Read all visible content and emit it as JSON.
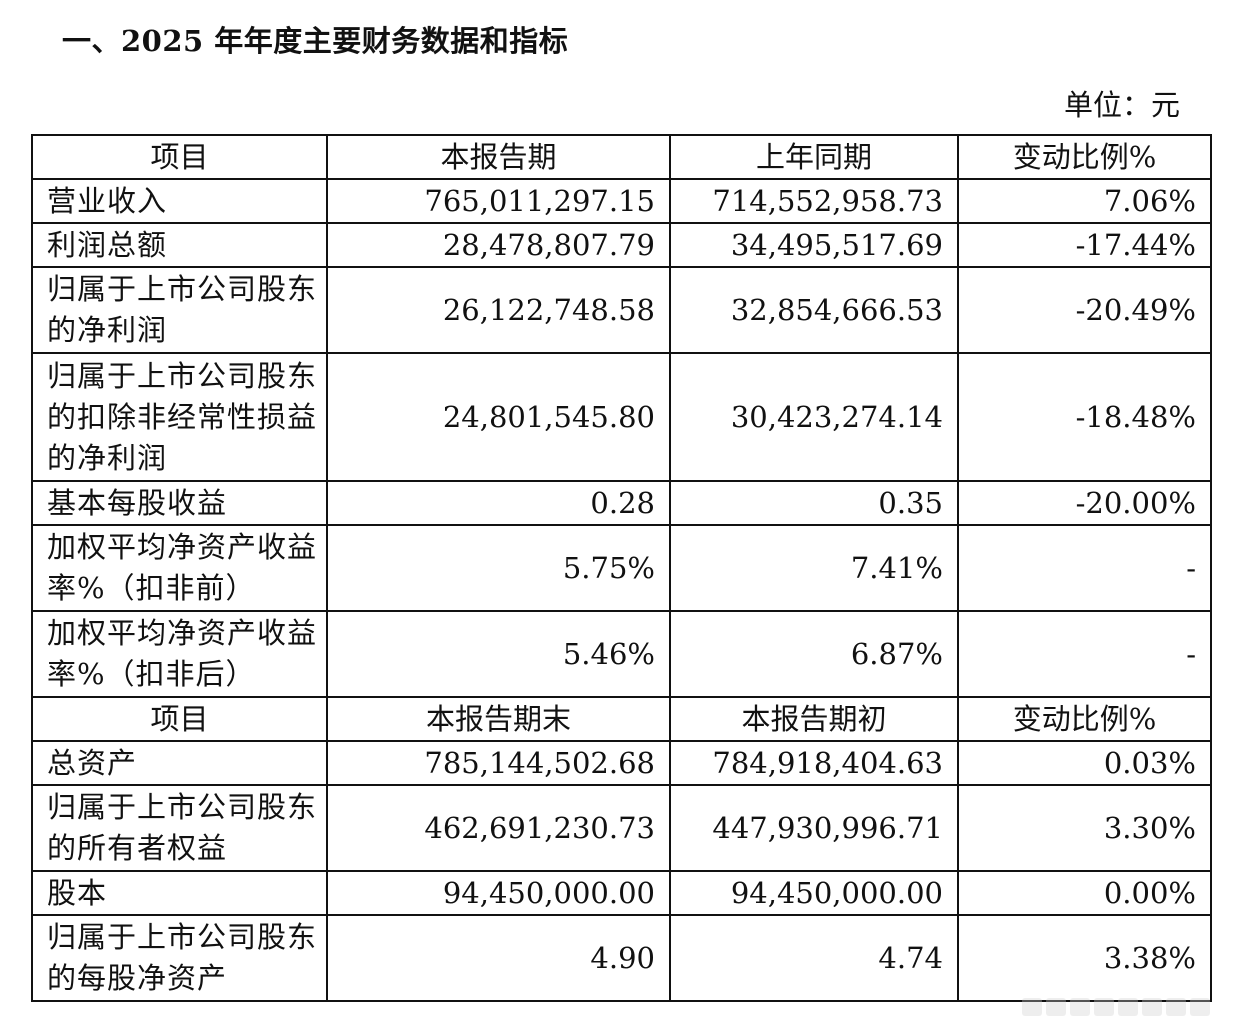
{
  "document": {
    "title": "一、2025 年年度主要财务数据和指标",
    "unit": "单位：元"
  },
  "table": {
    "header1": {
      "col1": "项目",
      "col2": "本报告期",
      "col3": "上年同期",
      "col4": "变动比例%"
    },
    "section1": [
      {
        "label": "营业收入",
        "current": "765,011,297.15",
        "prior": "714,552,958.73",
        "change": "7.06%"
      },
      {
        "label": "利润总额",
        "current": "28,478,807.79",
        "prior": "34,495,517.69",
        "change": "-17.44%"
      },
      {
        "label": "归属于上市公司股东的净利润",
        "current": "26,122,748.58",
        "prior": "32,854,666.53",
        "change": "-20.49%"
      },
      {
        "label": "归属于上市公司股东的扣除非经常性损益的净利润",
        "current": "24,801,545.80",
        "prior": "30,423,274.14",
        "change": "-18.48%"
      },
      {
        "label": "基本每股收益",
        "current": "0.28",
        "prior": "0.35",
        "change": "-20.00%"
      },
      {
        "label": "加权平均净资产收益率%（扣非前）",
        "current": "5.75%",
        "prior": "7.41%",
        "change": "-"
      },
      {
        "label": "加权平均净资产收益率%（扣非后）",
        "current": "5.46%",
        "prior": "6.87%",
        "change": "-"
      }
    ],
    "header2": {
      "col1": "项目",
      "col2": "本报告期末",
      "col3": "本报告期初",
      "col4": "变动比例%"
    },
    "section2": [
      {
        "label": "总资产",
        "current": "785,144,502.68",
        "prior": "784,918,404.63",
        "change": "0.03%"
      },
      {
        "label": "归属于上市公司股东的所有者权益",
        "current": "462,691,230.73",
        "prior": "447,930,996.71",
        "change": "3.30%"
      },
      {
        "label": "股本",
        "current": "94,450,000.00",
        "prior": "94,450,000.00",
        "change": "0.00%"
      },
      {
        "label": "归属于上市公司股东的每股净资产",
        "current": "4.90",
        "prior": "4.74",
        "change": "3.38%"
      }
    ]
  }
}
